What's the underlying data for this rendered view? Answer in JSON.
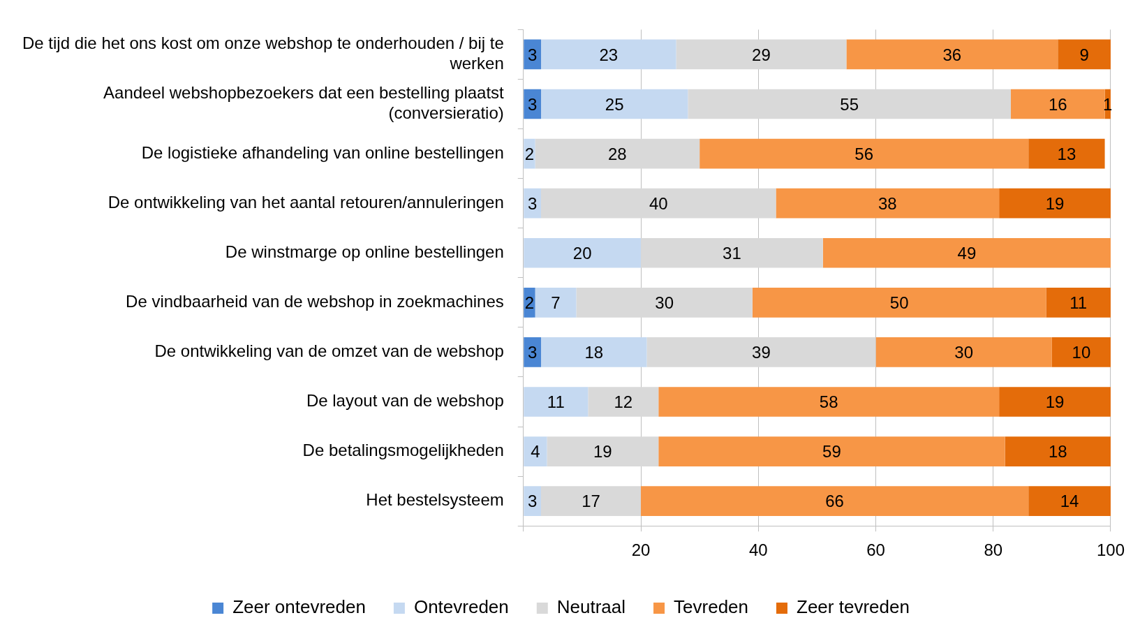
{
  "chart_data": {
    "type": "bar",
    "orientation": "horizontal",
    "stacked": true,
    "data_labels": true,
    "grid": "x",
    "legend": "bottom",
    "categories": [
      "De tijd die het ons kost om onze webshop te onderhouden / bij te werken",
      "Aandeel webshopbezoekers dat een bestelling plaatst (conversieratio)",
      "De logistieke afhandeling van online bestellingen",
      "De ontwikkeling van het aantal retouren/annuleringen",
      "De winstmarge op online bestellingen",
      "De vindbaarheid van de webshop in zoekmachines",
      "De ontwikkeling van de omzet van de webshop",
      "De layout van de webshop",
      "De betalingsmogelijkheden",
      "Het bestelsysteem"
    ],
    "xlim": [
      0,
      100
    ],
    "xticks": [
      {
        "value": 0,
        "label": null
      },
      20,
      40,
      60,
      80,
      100
    ],
    "series": [
      {
        "name": "Zeer ontevreden",
        "color": "#4a86d4",
        "values": [
          3,
          3,
          null,
          null,
          null,
          2,
          3,
          null,
          null,
          null
        ]
      },
      {
        "name": "Ontevreden",
        "color": "#c5d9f1",
        "values": [
          23,
          25,
          2,
          3,
          20,
          7,
          18,
          11,
          4,
          3
        ]
      },
      {
        "name": "Neutraal",
        "color": "#d9d9d9",
        "values": [
          29,
          55,
          28,
          40,
          31,
          30,
          39,
          12,
          19,
          17
        ]
      },
      {
        "name": "Tevreden",
        "color": "#f79646",
        "values": [
          36,
          16,
          56,
          38,
          49,
          50,
          30,
          58,
          59,
          66
        ]
      },
      {
        "name": "Zeer tevreden",
        "color": "#e46c0a",
        "values": [
          9,
          1,
          13,
          19,
          null,
          11,
          10,
          19,
          18,
          14
        ]
      }
    ]
  }
}
